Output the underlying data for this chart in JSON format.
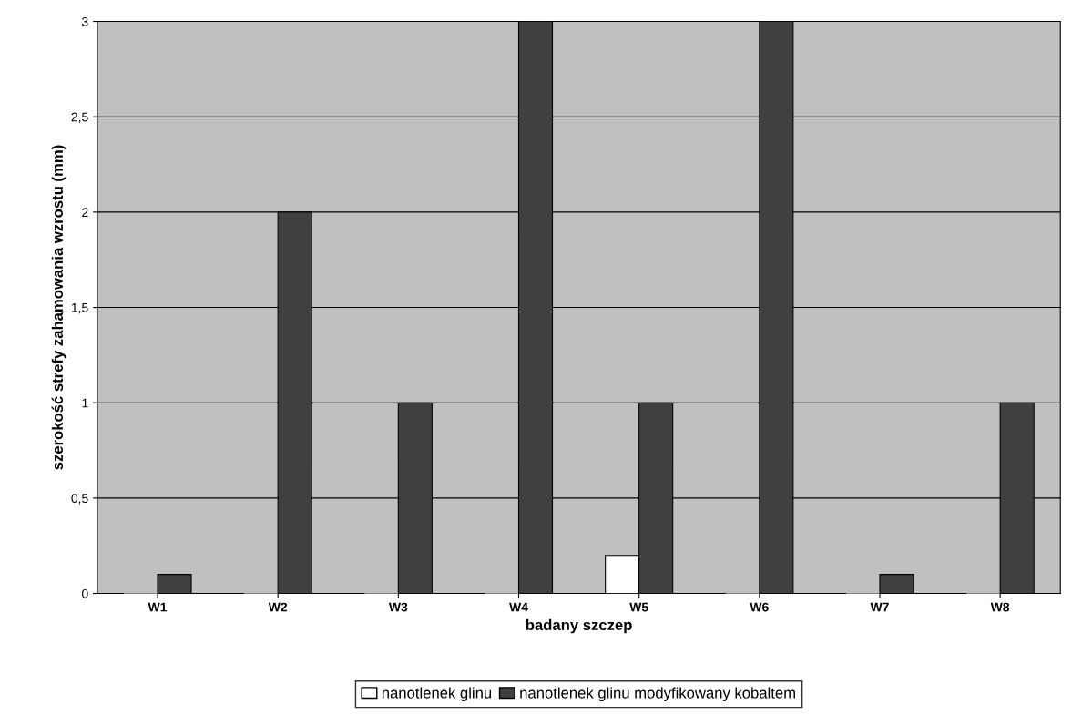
{
  "chart_data": {
    "type": "bar",
    "xlabel": "badany szczep",
    "ylabel": "szerokość strefy zahamowania wzrostu (mm)",
    "categories": [
      "W1",
      "W2",
      "W3",
      "W4",
      "W5",
      "W6",
      "W7",
      "W8"
    ],
    "series": [
      {
        "name": "nanotlenek glinu",
        "color": "#ffffff",
        "values": [
          0,
          0,
          0,
          0,
          0.2,
          0,
          0,
          0
        ]
      },
      {
        "name": "nanotlenek glinu modyfikowany kobaltem",
        "color": "#404040",
        "values": [
          0.1,
          2,
          1,
          3,
          1,
          3,
          0.1,
          1
        ]
      }
    ],
    "ylim": [
      0,
      3
    ],
    "yticks": [
      0,
      {
        "value": 0.5,
        "label": "0,5"
      },
      1,
      {
        "value": 1.5,
        "label": "1,5"
      },
      2,
      {
        "value": 2.5,
        "label": "2,5"
      },
      3
    ],
    "grid": "y",
    "legend": "bottom"
  }
}
